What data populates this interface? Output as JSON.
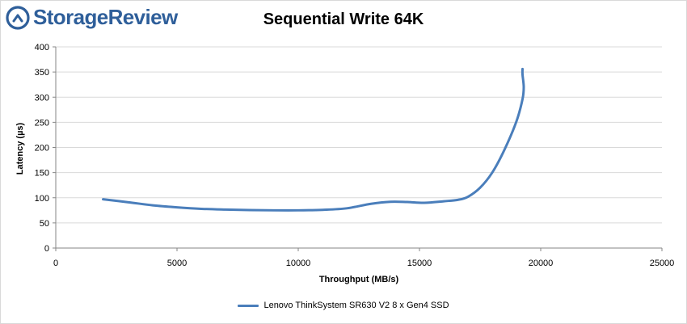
{
  "brand": {
    "name": "StorageReview",
    "color": "#2f5f9a"
  },
  "chart_data": {
    "type": "line",
    "title": "Sequential Write 64K",
    "xlabel": "Throughput (MB/s)",
    "ylabel": "Latency (µs)",
    "xlim": [
      0,
      25000
    ],
    "ylim": [
      0,
      400
    ],
    "xticks": [
      0,
      5000,
      10000,
      15000,
      20000,
      25000
    ],
    "yticks": [
      0,
      50,
      100,
      150,
      200,
      250,
      300,
      350,
      400
    ],
    "grid": true,
    "legend_position": "bottom",
    "series": [
      {
        "name": "Lenovo ThinkSystem SR630 V2 8 x Gen4 SSD",
        "color": "#4a7ebb",
        "points": [
          [
            1950,
            97
          ],
          [
            3000,
            91
          ],
          [
            4000,
            85
          ],
          [
            5000,
            81
          ],
          [
            6000,
            78
          ],
          [
            7000,
            76.5
          ],
          [
            8000,
            75.5
          ],
          [
            9000,
            75
          ],
          [
            10000,
            75
          ],
          [
            11000,
            76
          ],
          [
            12000,
            79
          ],
          [
            13000,
            88
          ],
          [
            13800,
            92
          ],
          [
            14500,
            91.5
          ],
          [
            15200,
            90
          ],
          [
            16000,
            93
          ],
          [
            16600,
            96
          ],
          [
            17000,
            102
          ],
          [
            17500,
            120
          ],
          [
            18000,
            150
          ],
          [
            18500,
            195
          ],
          [
            19000,
            252
          ],
          [
            19250,
            296
          ],
          [
            19300,
            320
          ],
          [
            19250,
            345
          ],
          [
            19250,
            356
          ]
        ]
      }
    ]
  }
}
